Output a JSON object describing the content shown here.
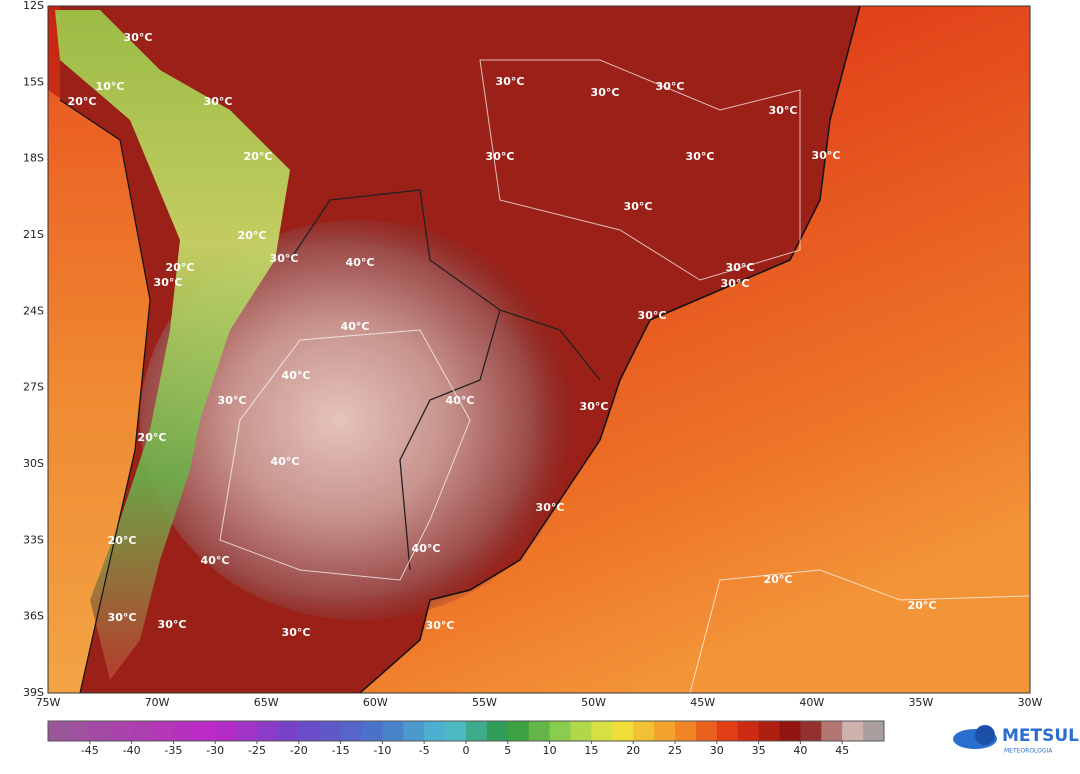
{
  "map": {
    "lat_labels": [
      "12S",
      "15S",
      "18S",
      "21S",
      "24S",
      "27S",
      "30S",
      "33S",
      "36S",
      "39S"
    ],
    "lon_labels": [
      "75W",
      "70W",
      "65W",
      "60W",
      "55W",
      "50W",
      "45W",
      "40W",
      "35W",
      "30W"
    ],
    "contour_labels": [
      "30°C",
      "10°C",
      "20°C",
      "30°C",
      "20°C",
      "30°C",
      "30°C",
      "30°C",
      "30°C",
      "30°C",
      "30°C",
      "30°C",
      "30°C",
      "20°C",
      "30°C",
      "20°C",
      "30°C",
      "40°C",
      "30°C",
      "30°C",
      "40°C",
      "30°C",
      "40°C",
      "30°C",
      "40°C",
      "30°C",
      "20°C",
      "40°C",
      "30°C",
      "20°C",
      "40°C",
      "40°C",
      "20°C",
      "20°C",
      "30°C",
      "30°C",
      "30°C",
      "30°C"
    ]
  },
  "colorbar": {
    "lim": [
      -50,
      50
    ],
    "ticks": [
      -45,
      -40,
      -35,
      -30,
      -25,
      -20,
      -15,
      -10,
      -5,
      0,
      5,
      10,
      15,
      20,
      25,
      30,
      35,
      40,
      45
    ]
  },
  "logo": {
    "name": "METSUL",
    "tagline": "METEOROLOGIA"
  }
}
